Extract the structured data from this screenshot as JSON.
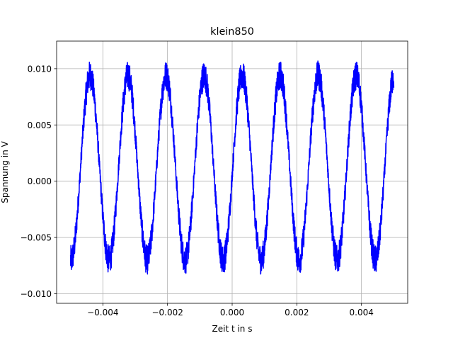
{
  "chart_data": {
    "type": "line",
    "title": "klein850",
    "xlabel": "Zeit t in s",
    "ylabel": "Spannung in V",
    "xlim": [
      -0.00543,
      0.00543
    ],
    "ylim": [
      -0.01085,
      0.01245
    ],
    "xticks": [
      -0.004,
      -0.002,
      0.0,
      0.002,
      0.004
    ],
    "xtick_labels": [
      "−0.004",
      "−0.002",
      "0.000",
      "0.002",
      "0.004"
    ],
    "yticks": [
      -0.01,
      -0.005,
      0.0,
      0.005,
      0.01
    ],
    "ytick_labels": [
      "−0.010",
      "−0.005",
      "0.000",
      "0.005",
      "0.010"
    ],
    "grid": true,
    "series": [
      {
        "color": "#0000ff",
        "signal": {
          "kind": "noisy-sine",
          "x_start": -0.005,
          "x_end": 0.005,
          "frequency_hz": 850,
          "amplitude": 0.0082,
          "offset": 0.0012,
          "phase_rad": -0.08,
          "noise": 0.0013
        },
        "peaks": [
          0.0101,
          0.01,
          0.0102,
          0.0114,
          0.0116,
          0.0108,
          0.0102,
          0.0102
        ],
        "troughs": [
          -0.0092,
          -0.0092,
          -0.0092,
          -0.0093,
          -0.0098,
          -0.0098,
          -0.009,
          -0.009
        ]
      }
    ]
  }
}
